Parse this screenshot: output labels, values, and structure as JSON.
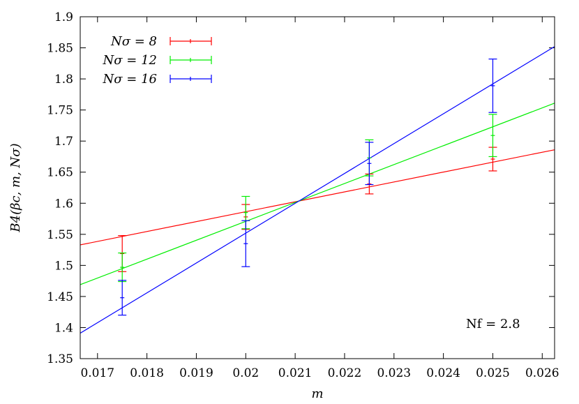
{
  "chart_data": {
    "type": "scatter",
    "xlabel": "m",
    "ylabel": "B4(βc, m, Nσ)",
    "xlim": [
      0.01665,
      0.02625
    ],
    "ylim": [
      1.35,
      1.9
    ],
    "xticks": [
      "0.017",
      "0.018",
      "0.019",
      "0.02",
      "0.021",
      "0.022",
      "0.023",
      "0.024",
      "0.025",
      "0.026"
    ],
    "yticks": [
      "1.35",
      "1.4",
      "1.45",
      "1.5",
      "1.55",
      "1.6",
      "1.65",
      "1.7",
      "1.75",
      "1.8",
      "1.85",
      "1.9"
    ],
    "annotation": "Nf = 2.8",
    "legend_position": "top-left",
    "grid": false,
    "series": [
      {
        "name": "Nσ = 8",
        "color": "#ff0000",
        "points": [
          {
            "x": 0.0175,
            "y": 1.519,
            "err": 0.029
          },
          {
            "x": 0.02,
            "y": 1.578,
            "err": 0.02
          },
          {
            "x": 0.0225,
            "y": 1.631,
            "err": 0.016
          },
          {
            "x": 0.025,
            "y": 1.671,
            "err": 0.019
          }
        ],
        "fit": {
          "x": [
            0.01665,
            0.02625
          ],
          "y": [
            1.533,
            1.686
          ]
        }
      },
      {
        "name": "Nσ = 12",
        "color": "#00ee00",
        "points": [
          {
            "x": 0.0175,
            "y": 1.497,
            "err": 0.023
          },
          {
            "x": 0.02,
            "y": 1.585,
            "err": 0.026
          },
          {
            "x": 0.0225,
            "y": 1.673,
            "err": 0.029
          },
          {
            "x": 0.025,
            "y": 1.709,
            "err": 0.034
          }
        ],
        "fit": {
          "x": [
            0.01665,
            0.02625
          ],
          "y": [
            1.469,
            1.761
          ]
        }
      },
      {
        "name": "Nσ = 16",
        "color": "#0000ff",
        "points": [
          {
            "x": 0.0175,
            "y": 1.448,
            "err": 0.028
          },
          {
            "x": 0.02,
            "y": 1.535,
            "err": 0.037
          },
          {
            "x": 0.0225,
            "y": 1.664,
            "err": 0.034
          },
          {
            "x": 0.025,
            "y": 1.789,
            "err": 0.043
          }
        ],
        "fit": {
          "x": [
            0.01665,
            0.02625
          ],
          "y": [
            1.391,
            1.852
          ]
        }
      }
    ]
  }
}
